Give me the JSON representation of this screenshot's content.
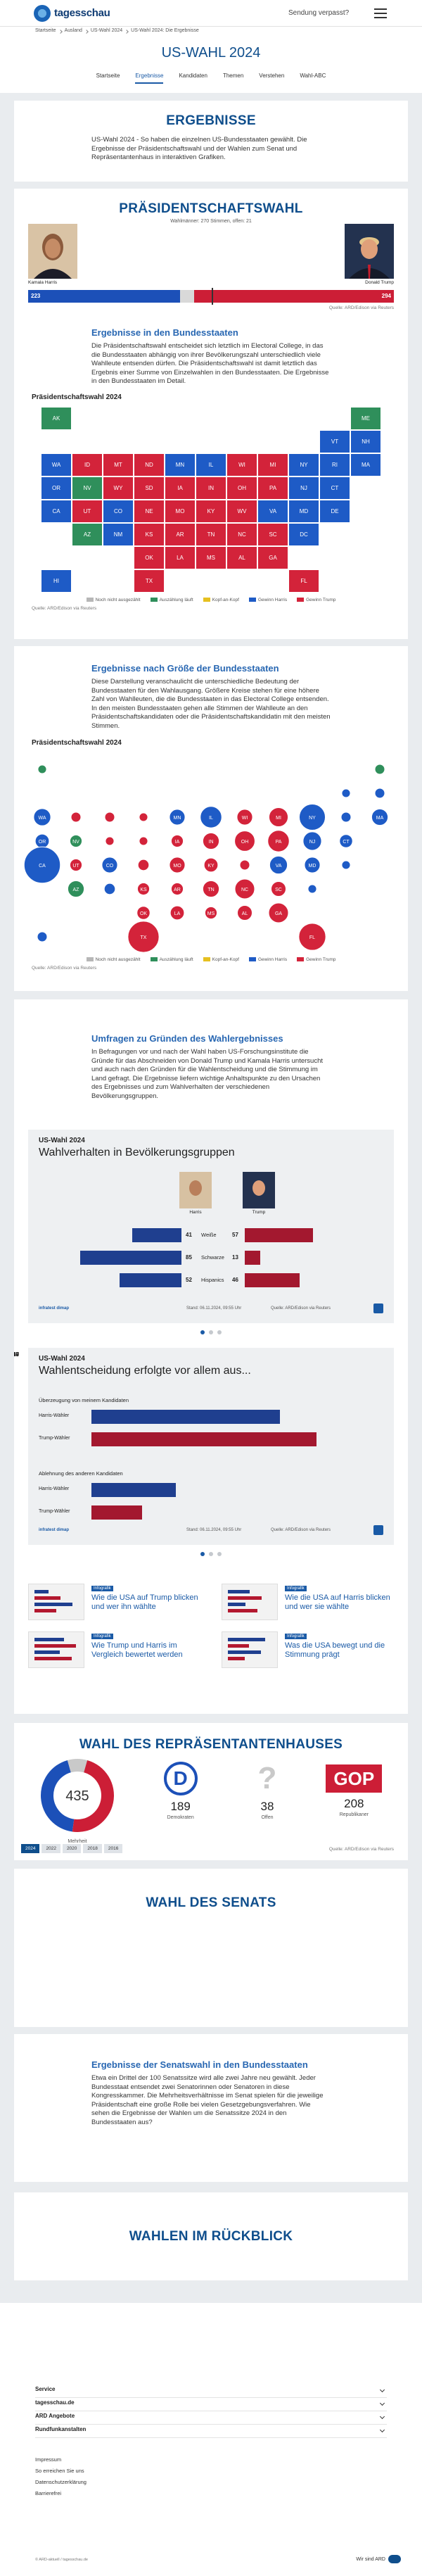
{
  "header": {
    "logo": "tagesschau",
    "missed": "Sendung verpasst?"
  },
  "breadcrumb": [
    "Startseite",
    "Ausland",
    "US-Wahl 2024",
    "US-Wahl 2024: Die Ergebnisse"
  ],
  "title": "US-WAHL 2024",
  "nav": [
    "Startseite",
    "Ergebnisse",
    "Kandidaten",
    "Themen",
    "Verstehen",
    "Wahl-ABC"
  ],
  "intro": {
    "title": "ERGEBNISSE",
    "text": "US-Wahl 2024 - So haben die einzelnen US-Bundesstaaten gewählt. Die Ergebnisse der Präsidentschaftswahl und der Wahlen zum Senat und Repräsentantenhaus in interaktiven Grafiken."
  },
  "president": {
    "title": "PRÄSIDENTSCHAFTSWAHL",
    "majority_label": "Wahlmänner:",
    "majority": 270,
    "open_label": "Stimmen, offen:",
    "open": 21,
    "candidates": [
      {
        "name": "Kamala Harris",
        "votes": 223,
        "color": "#1c50b8"
      },
      {
        "name": "Donald Trump",
        "votes": 294,
        "color": "#cc1e36"
      }
    ],
    "source": "Quelle: ARD/Edison via Reuters"
  },
  "state_results": {
    "title": "Ergebnisse in den Bundesstaaten",
    "text": "Die Präsidentschaftswahl entscheidet sich letztlich im Electoral College, in das die Bundesstaaten abhängig von ihrer Bevölkerungszahl unterschiedlich viele Wahlleute entsenden dürfen. Die Präsidentschaftswahl ist damit letztlich das Ergebnis einer Summe von Einzelwahlen in den Bundesstaaten. Die Ergebnisse in den Bundesstaaten im Detail.",
    "chart_title": "Präsidentschaftswahl 2024",
    "source": "Quelle: ARD/Edison via Reuters"
  },
  "legend": [
    {
      "label": "Noch nicht ausgezählt",
      "color": "#b7b7b7"
    },
    {
      "label": "Auszählung läuft",
      "color": "#2f8f5b"
    },
    {
      "label": "Kopf-an-Kopf",
      "color": "#e6c020"
    },
    {
      "label": "Gewinn Harris",
      "color": "#1e5bc6"
    },
    {
      "label": "Gewinn Trump",
      "color": "#d3233a"
    }
  ],
  "states": [
    {
      "abbr": "AK",
      "status": 1,
      "electors": 3
    },
    {
      "abbr": "ME",
      "status": 1,
      "electors": 4
    },
    {
      "abbr": "VT",
      "status": 3,
      "electors": 3
    },
    {
      "abbr": "NH",
      "status": 3,
      "electors": 4
    },
    {
      "abbr": "WA",
      "status": 3,
      "electors": 12
    },
    {
      "abbr": "ID",
      "status": 4,
      "electors": 4
    },
    {
      "abbr": "MT",
      "status": 4,
      "electors": 4
    },
    {
      "abbr": "ND",
      "status": 4,
      "electors": 3
    },
    {
      "abbr": "MN",
      "status": 3,
      "electors": 10
    },
    {
      "abbr": "IL",
      "status": 3,
      "electors": 19
    },
    {
      "abbr": "WI",
      "status": 4,
      "electors": 10
    },
    {
      "abbr": "MI",
      "status": 4,
      "electors": 15
    },
    {
      "abbr": "NY",
      "status": 3,
      "electors": 28
    },
    {
      "abbr": "RI",
      "status": 3,
      "electors": 4
    },
    {
      "abbr": "MA",
      "status": 3,
      "electors": 11
    },
    {
      "abbr": "OR",
      "status": 3,
      "electors": 8
    },
    {
      "abbr": "NV",
      "status": 1,
      "electors": 6
    },
    {
      "abbr": "WY",
      "status": 4,
      "electors": 3
    },
    {
      "abbr": "SD",
      "status": 4,
      "electors": 3
    },
    {
      "abbr": "IA",
      "status": 4,
      "electors": 6
    },
    {
      "abbr": "IN",
      "status": 4,
      "electors": 11
    },
    {
      "abbr": "OH",
      "status": 4,
      "electors": 17
    },
    {
      "abbr": "PA",
      "status": 4,
      "electors": 19
    },
    {
      "abbr": "NJ",
      "status": 3,
      "electors": 14
    },
    {
      "abbr": "CT",
      "status": 3,
      "electors": 7
    },
    {
      "abbr": "CA",
      "status": 3,
      "electors": 54
    },
    {
      "abbr": "UT",
      "status": 4,
      "electors": 6
    },
    {
      "abbr": "CO",
      "status": 3,
      "electors": 10
    },
    {
      "abbr": "NE",
      "status": 4,
      "electors": 5
    },
    {
      "abbr": "MO",
      "status": 4,
      "electors": 10
    },
    {
      "abbr": "KY",
      "status": 4,
      "electors": 8
    },
    {
      "abbr": "WV",
      "status": 4,
      "electors": 4
    },
    {
      "abbr": "VA",
      "status": 3,
      "electors": 13
    },
    {
      "abbr": "MD",
      "status": 3,
      "electors": 10
    },
    {
      "abbr": "DE",
      "status": 3,
      "electors": 3
    },
    {
      "abbr": "AZ",
      "status": 1,
      "electors": 11
    },
    {
      "abbr": "NM",
      "status": 3,
      "electors": 5
    },
    {
      "abbr": "KS",
      "status": 4,
      "electors": 6
    },
    {
      "abbr": "AR",
      "status": 4,
      "electors": 6
    },
    {
      "abbr": "TN",
      "status": 4,
      "electors": 11
    },
    {
      "abbr": "NC",
      "status": 4,
      "electors": 16
    },
    {
      "abbr": "SC",
      "status": 4,
      "electors": 9
    },
    {
      "abbr": "DC",
      "status": 3,
      "electors": 3
    },
    {
      "abbr": "OK",
      "status": 4,
      "electors": 7
    },
    {
      "abbr": "LA",
      "status": 4,
      "electors": 8
    },
    {
      "abbr": "MS",
      "status": 4,
      "electors": 6
    },
    {
      "abbr": "AL",
      "status": 4,
      "electors": 9
    },
    {
      "abbr": "GA",
      "status": 4,
      "electors": 16
    },
    {
      "abbr": "HI",
      "status": 3,
      "electors": 4
    },
    {
      "abbr": "TX",
      "status": 4,
      "electors": 40
    },
    {
      "abbr": "FL",
      "status": 4,
      "electors": 30
    }
  ],
  "size_results": {
    "title": "Ergebnisse nach Größe der Bundesstaaten",
    "text": "Diese Darstellung veranschaulicht die unterschiedliche Bedeutung der Bundesstaaten für den Wahlausgang. Größere Kreise stehen für eine höhere Zahl von Wahlleuten, die die Bundesstaaten in das Electoral College entsenden. In den meisten Bundesstaaten gehen alle Stimmen der Wahlleute an den Präsidentschaftskandidaten oder die Präsidentschaftskandidatin mit den meisten Stimmen.",
    "chart_title": "Präsidentschaftswahl 2024",
    "source": "Quelle: ARD/Edison via Reuters"
  },
  "surveys": {
    "title": "Umfragen zu Gründen des Wahlergebnisses",
    "text": "In Befragungen vor und nach der Wahl haben US-Forschungsinstitute die Gründe für das Abschneiden von Donald Trump und Kamala Harris untersucht und auch nach den Gründen für die Wahlentscheidung und die Stimmung im Land gefragt. Die Ergebnisse liefern wichtige Anhaltspunkte zu den Ursachen des Ergebnisses und zum Wahlverhalten der verschiedenen Bevölkerungsgruppen."
  },
  "survey1": {
    "kicker": "US-Wahl 2024",
    "title": "Wahlverhalten in Bevölkerungsgruppen",
    "candidates": [
      {
        "name": "Harris",
        "color": "#1f3f8f"
      },
      {
        "name": "Trump",
        "color": "#a3182f"
      }
    ],
    "groups": [
      {
        "label": "Weiße",
        "values": [
          41,
          57
        ]
      },
      {
        "label": "Schwarze",
        "values": [
          85,
          13
        ]
      },
      {
        "label": "Hispanics",
        "values": [
          52,
          46
        ]
      }
    ],
    "logo": "infratest dimap",
    "stand": "Stand: 06.11.2024, 09:55 Uhr",
    "source": "Quelle: ARD/Edison via Reuters"
  },
  "survey2": {
    "kicker": "US-Wahl 2024",
    "title": "Wahlentscheidung erfolgte vor allem aus...",
    "sections": [
      {
        "label": "Überzeugung von meinem Kandidaten",
        "rows": [
          {
            "label": "Harris-Wähler",
            "value": 67,
            "color": "#1f3f8f"
          },
          {
            "label": "Trump-Wähler",
            "value": 80,
            "color": "#a3182f"
          }
        ]
      },
      {
        "label": "Ablehnung des anderen Kandidaten",
        "rows": [
          {
            "label": "Harris-Wähler",
            "value": 30,
            "color": "#1f3f8f"
          },
          {
            "label": "Trump-Wähler",
            "value": 18,
            "color": "#a3182f"
          }
        ]
      }
    ],
    "logo": "infratest dimap",
    "stand": "Stand: 06.11.2024, 09:55 Uhr",
    "source": "Quelle: ARD/Edison via Reuters"
  },
  "teasers": [
    {
      "tag": "Infografik",
      "title": "Wie die USA auf Trump blicken und wer ihn wählte"
    },
    {
      "tag": "Infografik",
      "title": "Wie die USA auf Harris blicken und wer sie wählte"
    },
    {
      "tag": "Infografik",
      "title": "Wie Trump und Harris im Vergleich bewertet werden"
    },
    {
      "tag": "Infografik",
      "title": "Was die USA bewegt und die Stimmung prägt"
    }
  ],
  "house": {
    "title": "WAHL DES REPRÄSENTANTENHAUSES",
    "total": 435,
    "majority_label": "Mehrheit",
    "parties": [
      {
        "icon": "D",
        "name": "Demokraten",
        "seats": 189,
        "color": "#1c50b8"
      },
      {
        "icon": "?",
        "name": "Offen",
        "seats": 38,
        "color": "#c9c9c9"
      },
      {
        "icon": "GOP",
        "name": "Republikaner",
        "seats": 208,
        "color": "#cc1e36"
      }
    ],
    "years": [
      "2024",
      "2022",
      "2020",
      "2018",
      "2016"
    ],
    "source": "Quelle: ARD/Edison via Reuters"
  },
  "senate": {
    "title": "WAHL DES SENATS",
    "states_title": "Ergebnisse der Senatswahl in den Bundesstaaten",
    "text": "Etwa ein Drittel der 100 Senatssitze wird alle zwei Jahre neu gewählt. Jeder Bundesstaat entsendet zwei Senatorinnen oder Senatoren in diese Kongresskammer. Die Mehrheitsverhältnisse im Senat spielen für die jeweilige Präsidentschaft eine große Rolle bei vielen Gesetzgebungsverfahren. Wie sehen die Ergebnisse der Wahlen um die Senatssitze 2024 in den Bundesstaaten aus?"
  },
  "review": {
    "title": "WAHLEN IM RÜCKBLICK"
  },
  "footer": {
    "sections": [
      "Service",
      "tagesschau.de",
      "ARD Angebote",
      "Rundfunkanstalten"
    ],
    "links": [
      "Impressum",
      "So erreichen Sie uns",
      "Datenschutzerklärung",
      "Barrierefrei"
    ],
    "copyright": "© ARD-aktuell / tagesschau.de",
    "ard": "Wir sind ARD"
  }
}
